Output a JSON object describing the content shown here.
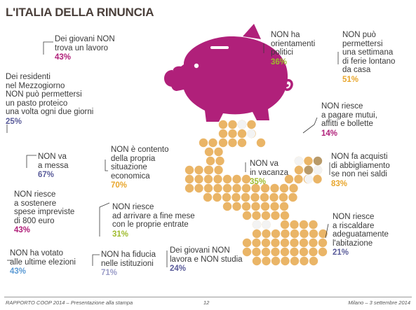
{
  "title": "L'ITALIA DELLA RINUNCIA",
  "stats": [
    {
      "id": "giovani-lavoro",
      "lines": [
        "Dei giovani NON",
        "trova un lavoro"
      ],
      "pct": "43%",
      "color": "#b0207a"
    },
    {
      "id": "orientamenti-politici",
      "lines": [
        "NON ha",
        "orientamenti",
        "politici"
      ],
      "pct": "36%",
      "color": "#9fbb2c"
    },
    {
      "id": "settimana-ferie",
      "lines": [
        "NON può",
        "permettersi",
        "una settimana",
        "di ferie lontano",
        "da casa"
      ],
      "pct": "51%",
      "color": "#e8a62c"
    },
    {
      "id": "pasto-proteico",
      "lines": [
        "Dei residenti",
        "nel Mezzogiorno",
        "NON può permettersi",
        "un pasto proteico",
        "una volta ogni due giorni"
      ],
      "pct": "25%",
      "color": "#5a5c9a"
    },
    {
      "id": "mutui-bollette",
      "lines": [
        "NON riesce",
        "a pagare mutui,",
        "affitti e bollette"
      ],
      "pct": "14%",
      "color": "#b0207a"
    },
    {
      "id": "messa",
      "lines": [
        "NON va",
        "a messa"
      ],
      "pct": "67%",
      "color": "#5a5c9a"
    },
    {
      "id": "situazione-economica",
      "lines": [
        "NON è contento",
        "della propria",
        "situazione",
        "economica"
      ],
      "pct": "70%",
      "color": "#e8a62c"
    },
    {
      "id": "vacanza",
      "lines": [
        "NON va",
        "in vacanza"
      ],
      "pct": "35%",
      "color": "#9fbb2c"
    },
    {
      "id": "abbigliamento",
      "lines": [
        "NON fa acquisti",
        "di abbigliamento",
        "se non nei saldi"
      ],
      "pct": "83%",
      "color": "#e8a62c"
    },
    {
      "id": "spese-impreviste",
      "lines": [
        "NON riesce",
        "a sostenere",
        "spese impreviste",
        "di 800 euro"
      ],
      "pct": "43%",
      "color": "#b0207a"
    },
    {
      "id": "fine-mese",
      "lines": [
        "NON riesce",
        "ad arrivare a fine mese",
        "con le proprie entrate"
      ],
      "pct": "31%",
      "color": "#9fbb2c"
    },
    {
      "id": "riscaldare",
      "lines": [
        "NON riesce",
        "a riscaldare",
        "adeguatamente",
        "l'abitazione"
      ],
      "pct": "21%",
      "color": "#5a5c9a"
    },
    {
      "id": "votato",
      "lines": [
        "NON ha votato",
        "alle ultime elezioni"
      ],
      "pct": "43%",
      "color": "#5a9ad4"
    },
    {
      "id": "fiducia-istituzioni",
      "lines": [
        "NON ha fiducia",
        "nelle istituzioni"
      ],
      "pct": "71%",
      "color": "#9a9cc8"
    },
    {
      "id": "lavora-studia",
      "lines": [
        "Dei giovani NON",
        "lavora e NON studia"
      ],
      "pct": "24%",
      "color": "#5a5c9a"
    }
  ],
  "footer": {
    "left": "RAPPORTO COOP 2014 – Presentazione alla stampa",
    "center": "12",
    "right": "Milano – 3 settembre 2014"
  },
  "colors": {
    "piggy": "#b0207a",
    "coin": "#eab567",
    "coin_empty": "#f3f3f3",
    "coin_dark": "#b89a6a",
    "leader": "#3a3a3a"
  }
}
